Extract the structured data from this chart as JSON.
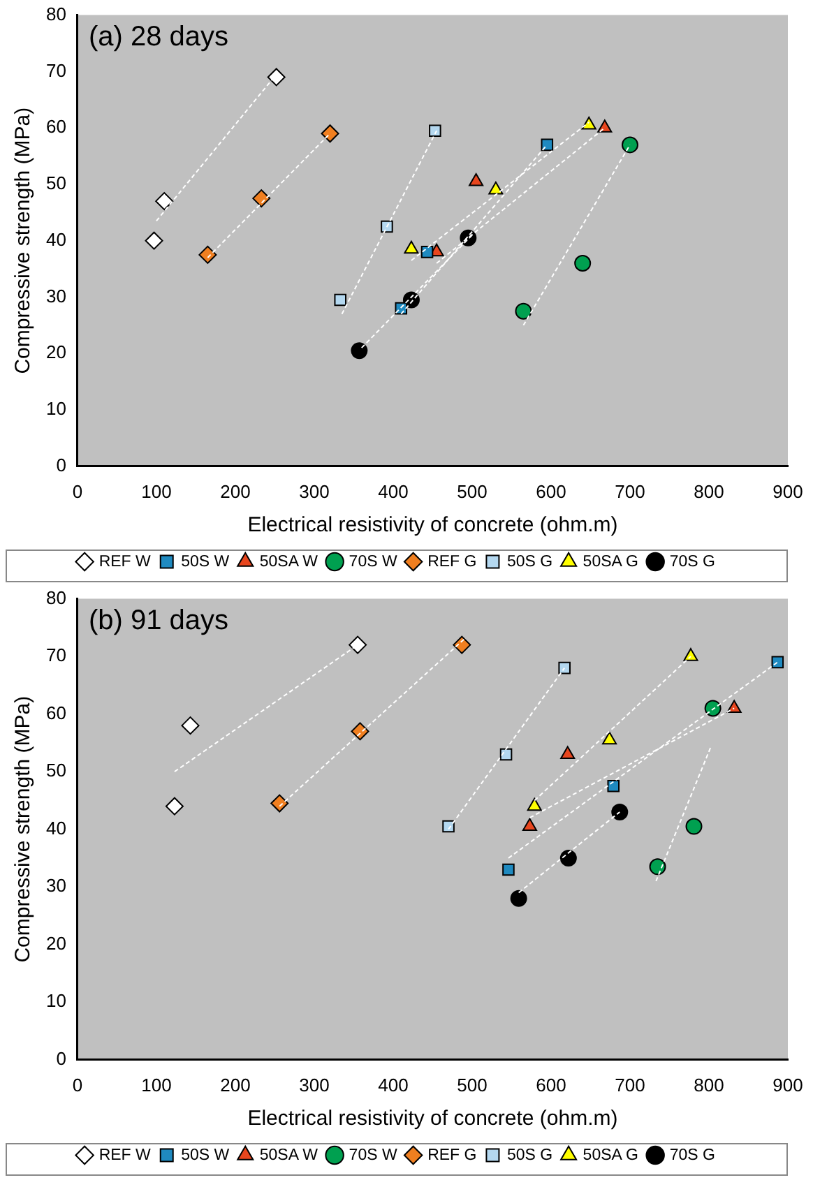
{
  "chart_data": [
    {
      "type": "scatter",
      "title": "(a) 28 days",
      "xlabel": "Electrical resistivity of concrete (ohm.m)",
      "ylabel": "Compressive strength (MPa)",
      "xlim": [
        0,
        900
      ],
      "ylim": [
        0,
        80
      ],
      "xticks": [
        0,
        100,
        200,
        300,
        400,
        500,
        600,
        700,
        800,
        900
      ],
      "yticks": [
        0,
        10,
        20,
        30,
        40,
        50,
        60,
        70,
        80
      ],
      "grid": false,
      "legend": "bottom",
      "series": [
        {
          "name": "REF W",
          "color": "#ffffff",
          "marker": "diamond",
          "x": [
            97,
            110,
            252
          ],
          "values": [
            40,
            47,
            69
          ]
        },
        {
          "name": "50S W",
          "color": "#1f8ac0",
          "marker": "square",
          "x": [
            410,
            443,
            595
          ],
          "values": [
            28,
            38,
            57
          ]
        },
        {
          "name": "50SA W",
          "color": "#e8461e",
          "marker": "triangle",
          "x": [
            455,
            505,
            668
          ],
          "values": [
            38,
            50.5,
            60
          ]
        },
        {
          "name": "70S W",
          "color": "#00a050",
          "marker": "circle",
          "x": [
            565,
            640,
            700
          ],
          "values": [
            27.5,
            36,
            57
          ]
        },
        {
          "name": "REF G",
          "color": "#f07f20",
          "marker": "diamond",
          "x": [
            165,
            233,
            320
          ],
          "values": [
            37.5,
            47.5,
            59
          ]
        },
        {
          "name": "50S G",
          "color": "#b4d8f0",
          "marker": "square",
          "x": [
            333,
            392,
            453
          ],
          "values": [
            29.5,
            42.5,
            59.5
          ]
        },
        {
          "name": "50SA G",
          "color": "#ffff00",
          "marker": "triangle",
          "x": [
            423,
            530,
            648
          ],
          "values": [
            38.5,
            49,
            60.5
          ]
        },
        {
          "name": "70S G",
          "color": "#000000",
          "marker": "circle",
          "x": [
            357,
            423,
            495
          ],
          "values": [
            20.5,
            29.5,
            40.5
          ]
        },
        {
          "type": "line",
          "color": "#ffffff",
          "line_style": "dashed",
          "marker": "none",
          "x": [
            100,
            252
          ],
          "values": [
            43.5,
            69.5
          ]
        },
        {
          "type": "line",
          "color": "#ffffff",
          "line_style": "dashed",
          "marker": "none",
          "x": [
            410,
            595
          ],
          "values": [
            27,
            57
          ]
        },
        {
          "type": "line",
          "color": "#ffffff",
          "line_style": "dashed",
          "marker": "none",
          "x": [
            455,
            668
          ],
          "values": [
            36,
            60
          ]
        },
        {
          "type": "line",
          "color": "#ffffff",
          "line_style": "dashed",
          "marker": "none",
          "x": [
            565,
            700
          ],
          "values": [
            25,
            57
          ]
        },
        {
          "type": "line",
          "color": "#ffffff",
          "line_style": "dashed",
          "marker": "none",
          "x": [
            165,
            320
          ],
          "values": [
            37,
            59
          ]
        },
        {
          "type": "line",
          "color": "#ffffff",
          "line_style": "dashed",
          "marker": "none",
          "x": [
            335,
            455
          ],
          "values": [
            27,
            59.5
          ]
        },
        {
          "type": "line",
          "color": "#ffffff",
          "line_style": "dashed",
          "marker": "none",
          "x": [
            423,
            648
          ],
          "values": [
            36.5,
            61
          ]
        },
        {
          "type": "line",
          "color": "#ffffff",
          "line_style": "dashed",
          "marker": "none",
          "x": [
            360,
            500
          ],
          "values": [
            21,
            41
          ]
        }
      ]
    },
    {
      "type": "scatter",
      "title": "(b) 91 days",
      "xlabel": "Electrical resistivity of concrete (ohm.m)",
      "ylabel": "Compressive strength (MPa)",
      "xlim": [
        0,
        900
      ],
      "ylim": [
        0,
        80
      ],
      "xticks": [
        0,
        100,
        200,
        300,
        400,
        500,
        600,
        700,
        800,
        900
      ],
      "yticks": [
        0,
        10,
        20,
        30,
        40,
        50,
        60,
        70,
        80
      ],
      "grid": false,
      "legend": "bottom",
      "series": [
        {
          "name": "REF W",
          "color": "#ffffff",
          "marker": "diamond",
          "x": [
            123,
            143,
            355
          ],
          "values": [
            44,
            58,
            72
          ]
        },
        {
          "name": "50S W",
          "color": "#1f8ac0",
          "marker": "square",
          "x": [
            546,
            679,
            887
          ],
          "values": [
            33,
            47.5,
            69
          ]
        },
        {
          "name": "50SA W",
          "color": "#e8461e",
          "marker": "triangle",
          "x": [
            573,
            621,
            832
          ],
          "values": [
            40.5,
            53,
            61
          ]
        },
        {
          "name": "70S W",
          "color": "#00a050",
          "marker": "circle",
          "x": [
            735,
            781,
            805
          ],
          "values": [
            33.5,
            40.5,
            61
          ]
        },
        {
          "name": "REF G",
          "color": "#f07f20",
          "marker": "diamond",
          "x": [
            256,
            358,
            487
          ],
          "values": [
            44.5,
            57,
            72
          ]
        },
        {
          "name": "50S G",
          "color": "#b4d8f0",
          "marker": "square",
          "x": [
            470,
            543,
            617
          ],
          "values": [
            40.5,
            53,
            68
          ]
        },
        {
          "name": "50SA G",
          "color": "#ffff00",
          "marker": "triangle",
          "x": [
            579,
            674,
            777
          ],
          "values": [
            44,
            55.5,
            70
          ]
        },
        {
          "name": "70S G",
          "color": "#000000",
          "marker": "circle",
          "x": [
            559,
            622,
            687
          ],
          "values": [
            28,
            35,
            43
          ]
        },
        {
          "type": "line",
          "color": "#ffffff",
          "line_style": "dashed",
          "marker": "none",
          "x": [
            123,
            355
          ],
          "values": [
            50,
            72
          ]
        },
        {
          "type": "line",
          "color": "#ffffff",
          "line_style": "dashed",
          "marker": "none",
          "x": [
            546,
            887
          ],
          "values": [
            35,
            69
          ]
        },
        {
          "type": "line",
          "color": "#ffffff",
          "line_style": "dashed",
          "marker": "none",
          "x": [
            573,
            832
          ],
          "values": [
            42,
            61
          ]
        },
        {
          "type": "line",
          "color": "#ffffff",
          "line_style": "dashed",
          "marker": "none",
          "x": [
            733,
            803
          ],
          "values": [
            31,
            54.5
          ]
        },
        {
          "type": "line",
          "color": "#ffffff",
          "line_style": "dashed",
          "marker": "none",
          "x": [
            256,
            490
          ],
          "values": [
            44,
            73
          ]
        },
        {
          "type": "line",
          "color": "#ffffff",
          "line_style": "dashed",
          "marker": "none",
          "x": [
            470,
            617
          ],
          "values": [
            40,
            68
          ]
        },
        {
          "type": "line",
          "color": "#ffffff",
          "line_style": "dashed",
          "marker": "none",
          "x": [
            579,
            777
          ],
          "values": [
            45,
            70
          ]
        },
        {
          "type": "line",
          "color": "#ffffff",
          "line_style": "dashed",
          "marker": "none",
          "x": [
            559,
            687
          ],
          "values": [
            29,
            43
          ]
        }
      ]
    }
  ]
}
